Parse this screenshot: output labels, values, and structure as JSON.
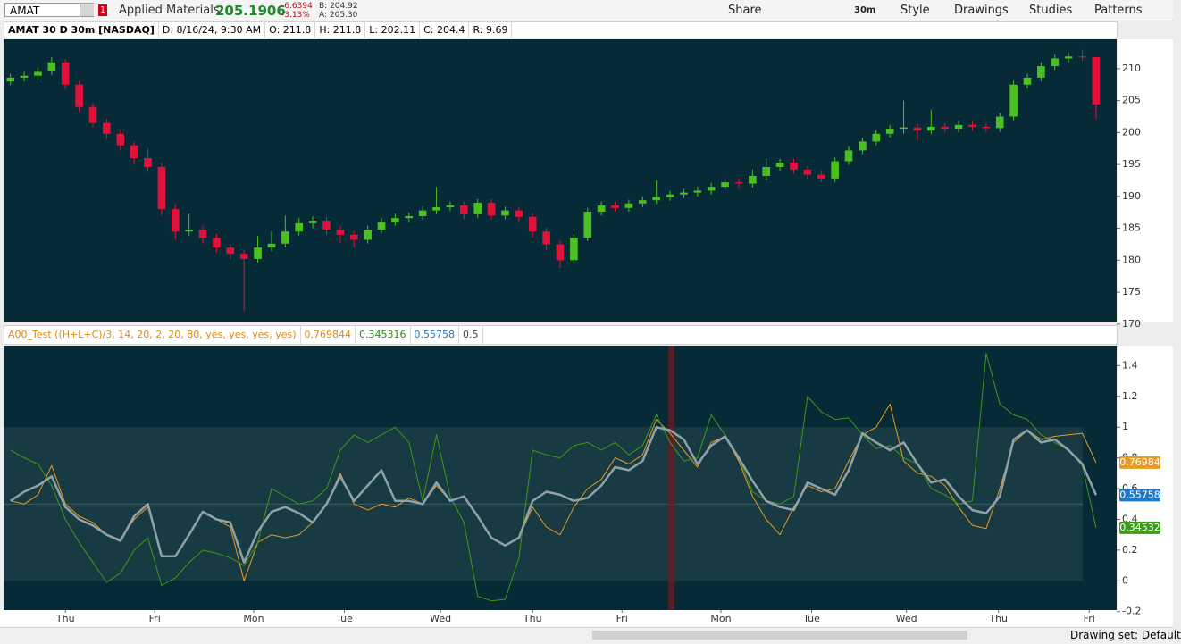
{
  "toolbar": {
    "symbol": "AMAT",
    "alerts": "1",
    "company": "Applied Materials",
    "last": "205.1906",
    "change": "-6.6394",
    "change_pct": "-3.13%",
    "bid": "B: 204.92",
    "ask": "A: 205.30",
    "interval": "30m",
    "buttons": [
      "Share",
      "Style",
      "Drawings",
      "Studies",
      "Patterns"
    ]
  },
  "header": {
    "title": "AMAT 30 D 30m [NASDAQ]",
    "fields": [
      "D: 8/16/24, 9:30 AM",
      "O: 211.8",
      "H: 211.8",
      "L: 202.11",
      "C: 204.4",
      "R: 9.69"
    ]
  },
  "study_header": {
    "title": "A00_Test ((H+L+C)/3, 14, 20, 2, 20, 80, yes, yes, yes, yes)",
    "values": [
      "0.769844",
      "0.345316",
      "0.55758",
      "0.5"
    ]
  },
  "footer": {
    "drawing_set": "Drawing set: Default"
  },
  "chart_data": [
    {
      "type": "candlestick",
      "up_color": "#4cbf22",
      "down_color": "#e0123c",
      "xlim": [
        -0.5,
        80.5
      ],
      "ylim": [
        170.4,
        214.6
      ],
      "yticks": [
        170,
        175,
        180,
        185,
        190,
        195,
        200,
        205,
        210
      ],
      "open": [
        208.0,
        208.6,
        208.9,
        209.6,
        211.0,
        207.5,
        204.0,
        201.5,
        199.8,
        198.0,
        196.0,
        194.6,
        188.0,
        184.5,
        184.8,
        183.5,
        182.0,
        181.0,
        180.2,
        182.0,
        182.6,
        184.5,
        185.8,
        186.2,
        184.8,
        184.0,
        183.2,
        184.8,
        186.0,
        186.6,
        186.9,
        187.8,
        188.3,
        188.6,
        187.2,
        189.0,
        187.0,
        187.8,
        186.8,
        184.5,
        182.5,
        180.0,
        183.5,
        187.6,
        188.6,
        188.2,
        188.9,
        189.4,
        189.9,
        190.3,
        190.6,
        190.9,
        191.5,
        192.2,
        192.0,
        193.2,
        194.6,
        195.3,
        194.2,
        193.4,
        192.8,
        195.5,
        197.2,
        198.6,
        199.8,
        200.6,
        200.8,
        200.3,
        200.9,
        200.6,
        201.2,
        200.9,
        200.7,
        202.5,
        207.5,
        208.6,
        210.4,
        211.6,
        211.9,
        211.8
      ],
      "high": [
        209.2,
        209.5,
        210.2,
        211.8,
        211.5,
        208.1,
        204.6,
        202.1,
        200.4,
        198.6,
        197.5,
        195.2,
        188.8,
        187.3,
        185.4,
        184.1,
        182.6,
        181.6,
        183.8,
        184.5,
        187.0,
        186.6,
        186.9,
        186.8,
        185.4,
        184.6,
        185.4,
        186.6,
        187.3,
        187.5,
        188.4,
        191.5,
        189.2,
        189.2,
        189.6,
        189.6,
        188.4,
        188.4,
        187.4,
        185.1,
        183.1,
        184.1,
        188.2,
        189.2,
        189.2,
        189.5,
        190.0,
        192.5,
        190.9,
        191.2,
        191.5,
        192.1,
        192.8,
        192.8,
        194.2,
        196.0,
        195.9,
        195.9,
        194.8,
        194.0,
        196.1,
        197.8,
        199.2,
        200.4,
        201.2,
        205.0,
        201.4,
        203.6,
        201.5,
        201.8,
        201.8,
        201.5,
        203.1,
        208.1,
        209.2,
        211.0,
        212.2,
        212.5,
        213.0,
        211.8
      ],
      "low": [
        207.4,
        208.0,
        208.3,
        209.0,
        206.8,
        203.2,
        200.8,
        199.0,
        197.2,
        195.0,
        193.8,
        187.0,
        183.2,
        183.8,
        182.6,
        181.2,
        180.2,
        172.0,
        179.6,
        181.4,
        182.0,
        183.9,
        185.0,
        184.0,
        182.8,
        182.0,
        182.6,
        184.2,
        185.4,
        186.0,
        186.3,
        187.2,
        187.7,
        186.4,
        186.6,
        186.4,
        186.4,
        186.0,
        183.6,
        181.6,
        178.8,
        179.6,
        183.0,
        187.0,
        187.6,
        187.6,
        188.3,
        188.8,
        189.3,
        189.7,
        190.0,
        190.3,
        190.9,
        191.2,
        191.4,
        192.6,
        194.0,
        193.6,
        192.8,
        192.2,
        192.2,
        194.9,
        196.6,
        198.0,
        199.2,
        199.8,
        198.8,
        199.7,
        200.0,
        200.0,
        200.3,
        200.1,
        200.1,
        201.9,
        206.9,
        208.0,
        209.8,
        211.0,
        211.2,
        202.11
      ],
      "close": [
        208.6,
        208.9,
        209.5,
        211.0,
        207.5,
        204.0,
        201.5,
        199.8,
        198.0,
        196.0,
        194.6,
        188.0,
        184.5,
        184.8,
        183.5,
        182.0,
        181.0,
        180.2,
        182.0,
        182.6,
        184.5,
        185.8,
        186.2,
        184.8,
        184.0,
        183.2,
        184.8,
        186.0,
        186.6,
        186.9,
        187.8,
        188.3,
        188.6,
        187.2,
        189.0,
        187.0,
        187.8,
        186.8,
        184.5,
        182.5,
        180.0,
        183.5,
        187.6,
        188.6,
        188.2,
        188.9,
        189.4,
        189.9,
        190.3,
        190.6,
        190.9,
        191.5,
        192.2,
        192.0,
        193.2,
        194.6,
        195.3,
        194.2,
        193.4,
        192.8,
        195.5,
        197.2,
        198.6,
        199.8,
        200.6,
        200.8,
        200.3,
        200.9,
        200.6,
        201.2,
        200.9,
        200.7,
        202.5,
        207.5,
        208.6,
        210.4,
        211.6,
        211.9,
        211.8,
        204.4
      ]
    },
    {
      "type": "line",
      "xlim": [
        -0.5,
        80.5
      ],
      "ylim": [
        -0.19,
        1.53
      ],
      "yticks": [
        -0.2,
        0,
        0.2,
        0.4,
        0.6,
        0.8,
        1,
        1.2,
        1.4
      ],
      "band": [
        0,
        1
      ],
      "band_color": "#183a42",
      "midline": 0.5,
      "xticks": [
        {
          "value": 4,
          "label": "Thu"
        },
        {
          "value": 10.5,
          "label": "Fri"
        },
        {
          "value": 17.7,
          "label": "Mon"
        },
        {
          "value": 24.3,
          "label": "Tue"
        },
        {
          "value": 31.3,
          "label": "Wed"
        },
        {
          "value": 38,
          "label": "Thu"
        },
        {
          "value": 44.5,
          "label": "Fri"
        },
        {
          "value": 51.7,
          "label": "Mon"
        },
        {
          "value": 58.3,
          "label": "Tue"
        },
        {
          "value": 65.2,
          "label": "Wed"
        },
        {
          "value": 71.9,
          "label": "Thu"
        },
        {
          "value": 78.5,
          "label": "Fri"
        }
      ],
      "series": [
        {
          "color": "#e89a22",
          "last_label": "0.76984",
          "width": 1,
          "values": [
            0.52,
            0.5,
            0.56,
            0.75,
            0.5,
            0.42,
            0.38,
            0.3,
            0.27,
            0.4,
            0.48,
            0.16,
            0.16,
            0.3,
            0.45,
            0.4,
            0.35,
            0.0,
            0.25,
            0.3,
            0.28,
            0.3,
            0.38,
            0.5,
            0.7,
            0.5,
            0.46,
            0.5,
            0.48,
            0.54,
            0.5,
            0.62,
            0.52,
            0.55,
            0.42,
            0.28,
            0.23,
            0.28,
            0.48,
            0.35,
            0.3,
            0.48,
            0.6,
            0.66,
            0.8,
            0.76,
            0.82,
            1.05,
            0.96,
            0.85,
            0.74,
            0.9,
            0.94,
            0.78,
            0.55,
            0.4,
            0.3,
            0.48,
            0.62,
            0.58,
            0.6,
            0.78,
            0.95,
            1.0,
            1.15,
            0.78,
            0.7,
            0.68,
            0.62,
            0.48,
            0.36,
            0.34,
            0.6,
            0.9,
            0.98,
            0.92,
            0.94,
            0.95,
            0.96,
            0.769844
          ]
        },
        {
          "color": "#3d9a1a",
          "last_label": "0.34532",
          "width": 1,
          "values": [
            0.85,
            0.8,
            0.76,
            0.62,
            0.4,
            0.25,
            0.12,
            -0.01,
            0.05,
            0.2,
            0.28,
            -0.03,
            0.02,
            0.12,
            0.2,
            0.18,
            0.15,
            0.1,
            0.25,
            0.6,
            0.55,
            0.5,
            0.52,
            0.6,
            0.85,
            0.95,
            0.9,
            0.95,
            1.0,
            0.9,
            0.52,
            0.95,
            0.55,
            0.38,
            -0.1,
            -0.13,
            -0.12,
            0.15,
            0.85,
            0.82,
            0.8,
            0.88,
            0.9,
            0.85,
            0.9,
            0.82,
            0.88,
            1.08,
            0.9,
            0.78,
            0.8,
            1.08,
            0.95,
            0.8,
            0.58,
            0.52,
            0.5,
            0.55,
            1.2,
            1.1,
            1.05,
            1.06,
            0.95,
            0.86,
            0.88,
            0.8,
            0.76,
            0.6,
            0.56,
            0.5,
            0.52,
            1.48,
            1.15,
            1.08,
            1.05,
            0.95,
            0.9,
            0.85,
            0.75,
            0.345316
          ]
        },
        {
          "color": "#8fa2aa",
          "last_label": "0.55758",
          "label_color": "#1f78c8",
          "width": 2.5,
          "values": [
            0.52,
            0.58,
            0.62,
            0.68,
            0.48,
            0.4,
            0.36,
            0.3,
            0.26,
            0.42,
            0.5,
            0.16,
            0.16,
            0.3,
            0.45,
            0.4,
            0.38,
            0.12,
            0.32,
            0.45,
            0.48,
            0.44,
            0.38,
            0.5,
            0.68,
            0.52,
            0.62,
            0.72,
            0.52,
            0.52,
            0.5,
            0.64,
            0.52,
            0.55,
            0.42,
            0.28,
            0.23,
            0.28,
            0.52,
            0.58,
            0.56,
            0.52,
            0.54,
            0.62,
            0.74,
            0.72,
            0.78,
            1.0,
            0.98,
            0.92,
            0.76,
            0.88,
            0.94,
            0.8,
            0.65,
            0.52,
            0.48,
            0.46,
            0.64,
            0.6,
            0.56,
            0.72,
            0.96,
            0.9,
            0.85,
            0.9,
            0.76,
            0.64,
            0.66,
            0.55,
            0.46,
            0.44,
            0.55,
            0.92,
            0.98,
            0.9,
            0.92,
            0.85,
            0.76,
            0.55758
          ]
        }
      ]
    }
  ]
}
